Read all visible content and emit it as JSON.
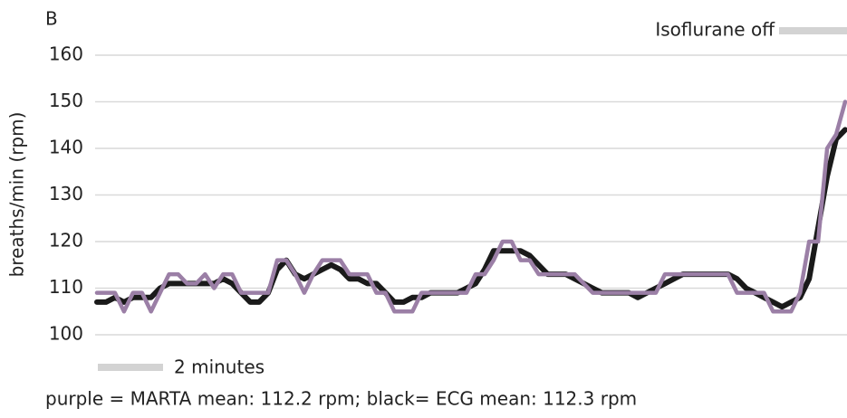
{
  "chart_data": {
    "type": "line",
    "title": "B",
    "y_label": "breaths/min (rpm)",
    "annotations": [
      "Isoflurane off",
      "2 minutes"
    ],
    "caption": "purple = MARTA mean: 112.2 rpm; black= ECG mean: 112.3 rpm",
    "ylim": [
      100,
      160
    ],
    "yticks": [
      100,
      110,
      120,
      130,
      140,
      150,
      160
    ],
    "grid": true,
    "series": [
      {
        "name": "ECG",
        "color": "#1a1a1a",
        "values": [
          107,
          107,
          108,
          107,
          108,
          108,
          108,
          110,
          111,
          111,
          111,
          111,
          111,
          111,
          112,
          111,
          109,
          107,
          107,
          109,
          114,
          116,
          113,
          112,
          113,
          114,
          115,
          114,
          112,
          112,
          111,
          111,
          109,
          107,
          107,
          108,
          108,
          109,
          109,
          109,
          109,
          110,
          111,
          114,
          118,
          118,
          118,
          118,
          117,
          115,
          113,
          113,
          113,
          112,
          111,
          110,
          109,
          109,
          109,
          109,
          108,
          109,
          110,
          111,
          112,
          113,
          113,
          113,
          113,
          113,
          113,
          112,
          110,
          109,
          108,
          107,
          106,
          107,
          108,
          112,
          123,
          134,
          142,
          144
        ]
      },
      {
        "name": "MARTA",
        "color": "#9b7fa6",
        "values": [
          109,
          109,
          109,
          105,
          109,
          109,
          105,
          109,
          113,
          113,
          111,
          111,
          113,
          110,
          113,
          113,
          109,
          109,
          109,
          109,
          116,
          116,
          113,
          109,
          113,
          116,
          116,
          116,
          113,
          113,
          113,
          109,
          109,
          105,
          105,
          105,
          109,
          109,
          109,
          109,
          109,
          109,
          113,
          113,
          116,
          120,
          120,
          116,
          116,
          113,
          113,
          113,
          113,
          113,
          111,
          109,
          109,
          109,
          109,
          109,
          109,
          109,
          109,
          113,
          113,
          113,
          113,
          113,
          113,
          113,
          113,
          109,
          109,
          109,
          109,
          105,
          105,
          105,
          109,
          120,
          120,
          140,
          143,
          150
        ]
      }
    ]
  }
}
